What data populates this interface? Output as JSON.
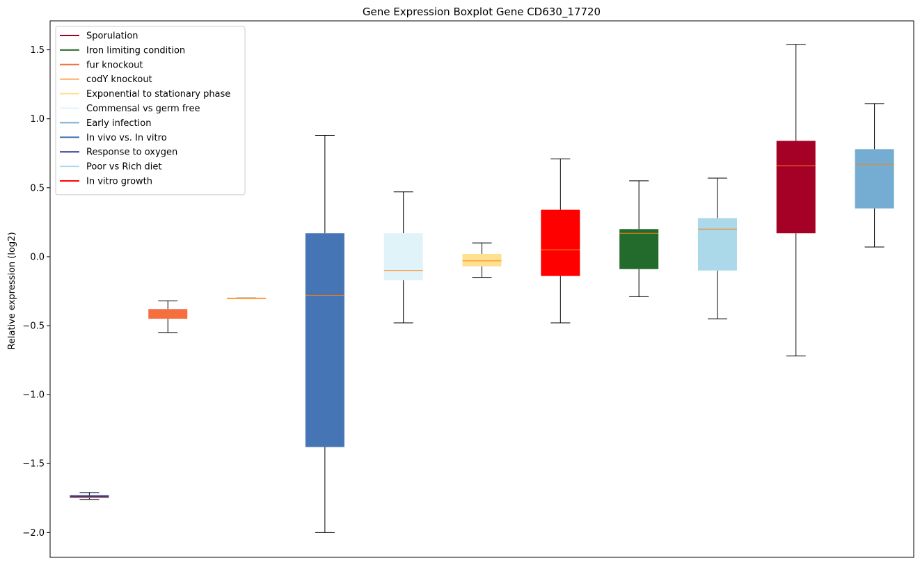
{
  "chart_data": {
    "type": "boxplot",
    "title": "Gene Expression Boxplot Gene CD630_17720",
    "xlabel": "",
    "ylabel": "Relative expression (log2)",
    "ylim": [
      -2.18,
      1.71
    ],
    "yticks": [
      1.5,
      1.0,
      0.5,
      0.0,
      -0.5,
      -1.0,
      -1.5,
      -2.0
    ],
    "ytick_labels": [
      "1.5",
      "1.0",
      "0.5",
      "0.0",
      "−0.5",
      "−1.0",
      "−1.5",
      "−2.0"
    ],
    "grid": false,
    "legend_position": "top-left",
    "median_color": "#ff7f0e",
    "legend": [
      {
        "name": "Sporulation",
        "color": "#a50026"
      },
      {
        "name": "Iron limiting condition",
        "color": "#236b2d"
      },
      {
        "name": "fur knockout",
        "color": "#f46d43"
      },
      {
        "name": "codY knockout",
        "color": "#fdae61"
      },
      {
        "name": "Exponential to stationary phase",
        "color": "#fee090"
      },
      {
        "name": "Commensal vs germ free",
        "color": "#e0f3f8"
      },
      {
        "name": "Early infection",
        "color": "#74add1"
      },
      {
        "name": "In vivo vs. In vitro",
        "color": "#4575b4"
      },
      {
        "name": "Response to oxygen",
        "color": "#313695"
      },
      {
        "name": "Poor vs Rich diet",
        "color": "#abd9e9"
      },
      {
        "name": "In vitro growth",
        "color": "#ff0000"
      }
    ],
    "boxes": [
      {
        "color": "#313695",
        "whisker_low": -1.76,
        "q1": -1.75,
        "median": -1.745,
        "q3": -1.73,
        "whisker_high": -1.71
      },
      {
        "color": "#f46d43",
        "whisker_low": -0.55,
        "q1": -0.45,
        "median": -0.42,
        "q3": -0.38,
        "whisker_high": -0.32
      },
      {
        "color": "#fdae61",
        "whisker_low": -0.3,
        "q1": -0.3,
        "median": -0.3,
        "q3": -0.3,
        "whisker_high": -0.3
      },
      {
        "color": "#4575b4",
        "whisker_low": -2.0,
        "q1": -1.38,
        "median": -0.28,
        "q3": 0.17,
        "whisker_high": 0.88
      },
      {
        "color": "#e0f3f8",
        "whisker_low": -0.48,
        "q1": -0.17,
        "median": -0.1,
        "q3": 0.17,
        "whisker_high": 0.47
      },
      {
        "color": "#fee090",
        "whisker_low": -0.15,
        "q1": -0.07,
        "median": -0.03,
        "q3": 0.02,
        "whisker_high": 0.1
      },
      {
        "color": "#ff0000",
        "whisker_low": -0.48,
        "q1": -0.14,
        "median": 0.05,
        "q3": 0.34,
        "whisker_high": 0.71
      },
      {
        "color": "#236b2d",
        "whisker_low": -0.29,
        "q1": -0.09,
        "median": 0.17,
        "q3": 0.2,
        "whisker_high": 0.55
      },
      {
        "color": "#abd9e9",
        "whisker_low": -0.45,
        "q1": -0.1,
        "median": 0.2,
        "q3": 0.28,
        "whisker_high": 0.57
      },
      {
        "color": "#a50026",
        "whisker_low": -0.72,
        "q1": 0.17,
        "median": 0.66,
        "q3": 0.84,
        "whisker_high": 1.54
      },
      {
        "color": "#74add1",
        "whisker_low": 0.07,
        "q1": 0.35,
        "median": 0.67,
        "q3": 0.78,
        "whisker_high": 1.11
      }
    ]
  }
}
